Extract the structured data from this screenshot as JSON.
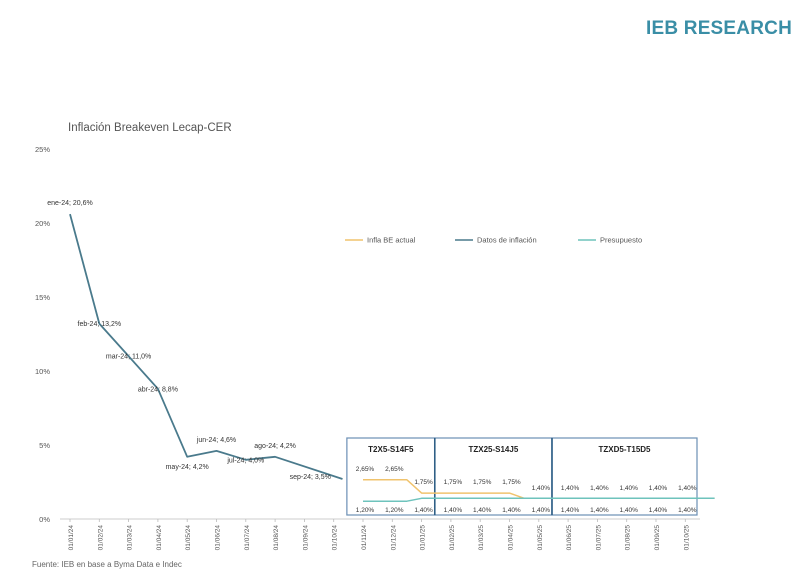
{
  "brand": {
    "name": "IEB RESEARCH",
    "color": "#3a8ea6"
  },
  "source_text": "Fuente: IEB en base a Byma Data e Indec",
  "chart_data": {
    "type": "line",
    "title": "Inflación Breakeven Lecap-CER",
    "ylim": [
      0,
      25
    ],
    "yticks": [
      "0%",
      "5%",
      "10%",
      "15%",
      "20%",
      "25%"
    ],
    "ytick_values": [
      0,
      5,
      10,
      15,
      20,
      25
    ],
    "categories": [
      "01/01/24",
      "01/02/24",
      "01/03/24",
      "01/04/24",
      "01/05/24",
      "01/06/24",
      "01/07/24",
      "01/08/24",
      "01/09/24",
      "01/10/24",
      "01/11/24",
      "01/12/24",
      "01/01/25",
      "01/02/25",
      "01/03/25",
      "01/04/25",
      "01/05/25",
      "01/06/25",
      "01/07/25",
      "01/08/25",
      "01/09/25",
      "01/10/25"
    ],
    "series": [
      {
        "name": "Datos de inflación",
        "color": "#4a7a8c",
        "x": [
          0,
          1,
          2,
          3,
          4,
          5,
          6,
          7,
          9.3
        ],
        "values": [
          20.6,
          13.2,
          11.0,
          8.8,
          4.2,
          4.6,
          4.0,
          4.2,
          2.7
        ]
      },
      {
        "name": "Infla BE actual",
        "color": "#f0c36d",
        "x": [
          10,
          11,
          11.5,
          12,
          15,
          15.5,
          22
        ],
        "values": [
          2.65,
          2.65,
          2.65,
          1.75,
          1.75,
          1.4,
          1.4
        ]
      },
      {
        "name": "Presupuesto",
        "color": "#6ec3bc",
        "x": [
          10,
          11,
          11.5,
          12,
          22
        ],
        "values": [
          1.2,
          1.2,
          1.2,
          1.4,
          1.4
        ]
      }
    ],
    "point_labels": [
      {
        "x": 0,
        "y": 20.6,
        "text": "ene-24; 20,6%",
        "pos": "above"
      },
      {
        "x": 1,
        "y": 13.2,
        "text": "feb-24; 13,2%",
        "pos": "center"
      },
      {
        "x": 2,
        "y": 11.0,
        "text": "mar-24; 11,0%",
        "pos": "center"
      },
      {
        "x": 3,
        "y": 8.8,
        "text": "abr-24; 8,8%",
        "pos": "center"
      },
      {
        "x": 4,
        "y": 4.2,
        "text": "may-24; 4,2%",
        "pos": "below"
      },
      {
        "x": 5,
        "y": 4.6,
        "text": "jun-24; 4,6%",
        "pos": "above"
      },
      {
        "x": 6,
        "y": 4.0,
        "text": "jul-24; 4,0%",
        "pos": "center"
      },
      {
        "x": 7,
        "y": 4.2,
        "text": "ago-24; 4,2%",
        "pos": "above"
      },
      {
        "x": 8.2,
        "y": 3.5,
        "text": "sep-24; 3,5%",
        "pos": "below"
      }
    ],
    "legend": [
      {
        "name": "Infla BE actual",
        "color": "#f0c36d"
      },
      {
        "name": "Datos de inflación",
        "color": "#4a7a8c"
      },
      {
        "name": "Presupuesto",
        "color": "#6ec3bc"
      }
    ],
    "boxes": [
      {
        "label": "T2X5-S14F5",
        "from": 9.45,
        "to": 12.45
      },
      {
        "label": "TZX25-S14J5",
        "from": 12.45,
        "to": 16.45
      },
      {
        "label": "TZXD5-T15D5",
        "from": 16.45,
        "to": 22.5
      }
    ],
    "value_labels_upper": [
      {
        "x": 10,
        "text": "2,65%"
      },
      {
        "x": 11,
        "text": "2,65%"
      },
      {
        "x": 12,
        "text": "1,75%"
      },
      {
        "x": 13,
        "text": "1,75%"
      },
      {
        "x": 14,
        "text": "1,75%"
      },
      {
        "x": 15,
        "text": "1,75%"
      },
      {
        "x": 16,
        "text": "1,40%"
      },
      {
        "x": 17,
        "text": "1,40%"
      },
      {
        "x": 18,
        "text": "1,40%"
      },
      {
        "x": 19,
        "text": "1,40%"
      },
      {
        "x": 20,
        "text": "1,40%"
      },
      {
        "x": 21,
        "text": "1,40%"
      }
    ],
    "value_labels_lower": [
      {
        "x": 10,
        "text": "1,20%"
      },
      {
        "x": 11,
        "text": "1,20%"
      },
      {
        "x": 12,
        "text": "1,40%"
      },
      {
        "x": 13,
        "text": "1,40%"
      },
      {
        "x": 14,
        "text": "1,40%"
      },
      {
        "x": 15,
        "text": "1,40%"
      },
      {
        "x": 16,
        "text": "1,40%"
      },
      {
        "x": 17,
        "text": "1,40%"
      },
      {
        "x": 18,
        "text": "1,40%"
      },
      {
        "x": 19,
        "text": "1,40%"
      },
      {
        "x": 20,
        "text": "1,40%"
      },
      {
        "x": 21,
        "text": "1,40%"
      }
    ]
  }
}
